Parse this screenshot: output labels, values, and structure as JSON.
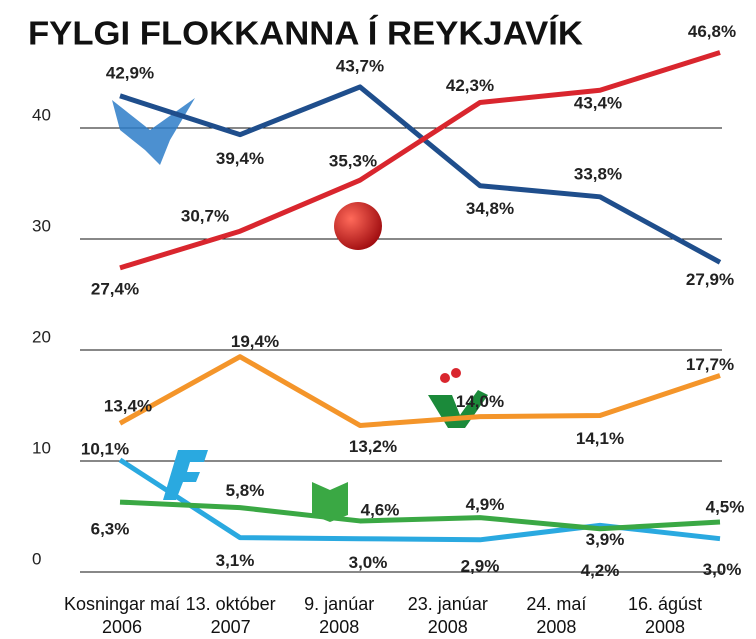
{
  "chart_data": {
    "type": "line",
    "title": "FYLGI FLOKKANNA Í REYKJAVÍK",
    "categories": [
      "Kosningar maí 2006",
      "13. október 2007",
      "9. janúar 2008",
      "23. janúar 2008",
      "24. maí 2008",
      "16. ágúst 2008"
    ],
    "ylim": [
      0,
      50
    ],
    "yticks": [
      0,
      10,
      20,
      30,
      40
    ],
    "grid": true,
    "series": [
      {
        "color": "#1f4e8c",
        "values": [
          42.9,
          39.4,
          43.7,
          34.8,
          33.8,
          27.9
        ],
        "value_labels": [
          "42,9%",
          "39,4%",
          "43,7%",
          "34,8%",
          "33,8%",
          "27,9%"
        ]
      },
      {
        "color": "#d9262e",
        "values": [
          27.4,
          30.7,
          35.3,
          42.3,
          43.4,
          46.8
        ],
        "value_labels": [
          "27,4%",
          "30,7%",
          "35,3%",
          "42,3%",
          "43,4%",
          "46,8%"
        ]
      },
      {
        "color": "#f4952a",
        "values": [
          13.4,
          19.4,
          13.2,
          14.0,
          14.1,
          17.7
        ],
        "value_labels": [
          "13,4%",
          "19,4%",
          "13,2%",
          "14,0%",
          "14,1%",
          "17,7%"
        ]
      },
      {
        "color": "#2aa9e0",
        "values": [
          10.1,
          3.1,
          3.0,
          2.9,
          4.2,
          3.0
        ],
        "value_labels": [
          "10,1%",
          "3,1%",
          "3,0%",
          "2,9%",
          "4,2%",
          "3,0%"
        ]
      },
      {
        "color": "#3aa844",
        "values": [
          6.3,
          5.8,
          4.6,
          4.9,
          3.9,
          4.5
        ],
        "value_labels": [
          "6,3%",
          "5,8%",
          "4,6%",
          "4,9%",
          "3,9%",
          "4,5%"
        ]
      }
    ]
  }
}
